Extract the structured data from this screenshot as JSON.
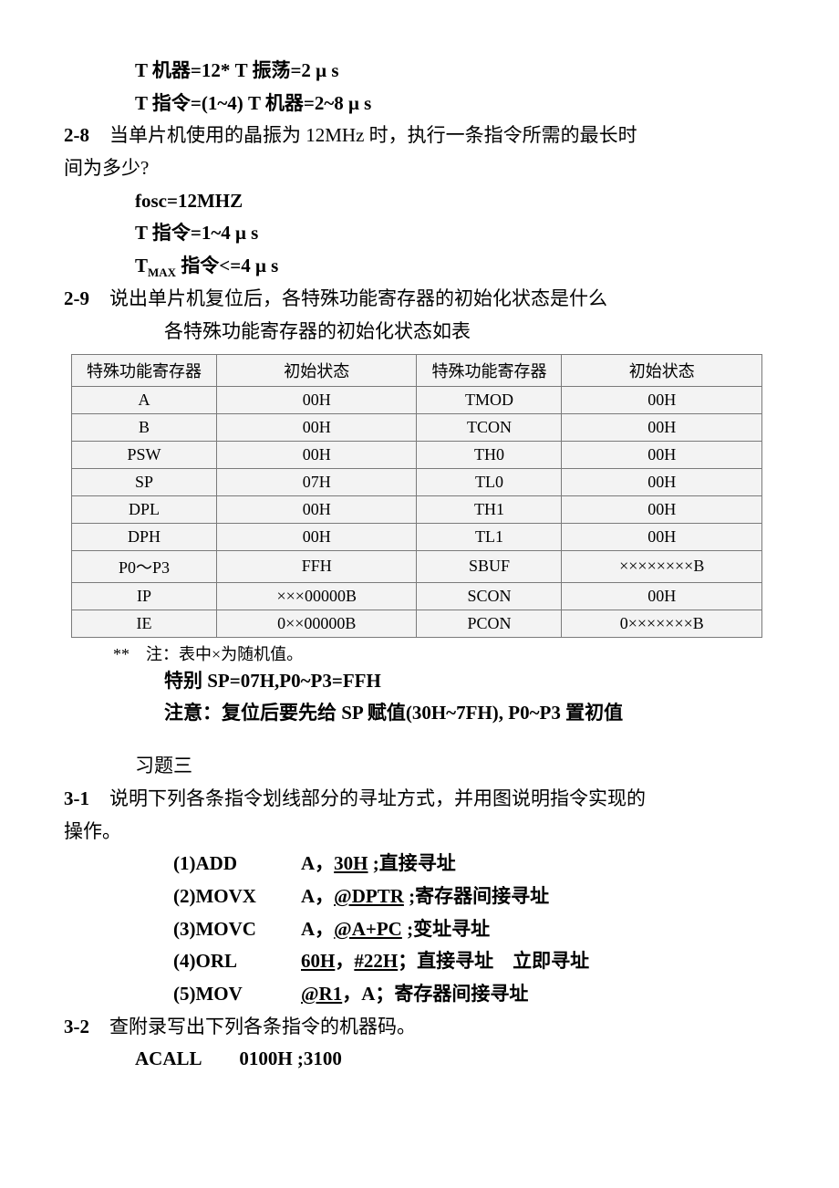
{
  "top": {
    "l1": "T 机器=12* T 振荡=2 μ s",
    "l2": "T 指令=(1~4) T 机器=2~8 μ s"
  },
  "q28": {
    "num": "2-8",
    "text1": "当单片机使用的晶振为 12MHz 时，执行一条指令所需的最长时",
    "text2": "间为多少?",
    "a1": "fosc=12MHZ",
    "a2": "T 指令=1~4 μ s",
    "a3_pre": "T",
    "a3_sub": "MAX",
    "a3_post": " 指令<=4 μ s"
  },
  "q29": {
    "num": "2-9",
    "text1": "说出单片机复位后，各特殊功能寄存器的初始化状态是什么",
    "text2": "各特殊功能寄存器的初始化状态如表"
  },
  "table": {
    "headers": [
      "特殊功能寄存器",
      "初始状态",
      "特殊功能寄存器",
      "初始状态"
    ],
    "rows": [
      [
        "A",
        "00H",
        "TMOD",
        "00H"
      ],
      [
        "B",
        "00H",
        "TCON",
        "00H"
      ],
      [
        "PSW",
        "00H",
        "TH0",
        "00H"
      ],
      [
        "SP",
        "07H",
        "TL0",
        "00H"
      ],
      [
        "DPL",
        "00H",
        "TH1",
        "00H"
      ],
      [
        "DPH",
        "00H",
        "TL1",
        "00H"
      ],
      [
        "P0～P3",
        "FFH",
        "SBUF",
        "××××××××B"
      ],
      [
        "IP",
        "×××00000B",
        "SCON",
        "00H"
      ],
      [
        "IE",
        "0××00000B",
        "PCON",
        "0×××××××B"
      ]
    ],
    "note": "**　注：表中×为随机值。",
    "extra1": "特别 SP=07H,P0~P3=FFH",
    "extra2": "注意：复位后要先给 SP 赋值(30H~7FH), P0~P3 置初值"
  },
  "ch3": {
    "title": "习题三",
    "q31_num": "3-1",
    "q31_t1": "说明下列各条指令划线部分的寻址方式，并用图说明指令实现的",
    "q31_t2": "操作。",
    "items": [
      {
        "pre": "(1)ADD",
        "mid": "A，",
        "u": "30H",
        "post": " ;直接寻址"
      },
      {
        "pre": "(2)MOVX",
        "mid": "A，",
        "u": "@DPTR",
        "post": " ;寄存器间接寻址"
      },
      {
        "pre": "(3)MOVC",
        "mid": "A，",
        "u": "@A+PC",
        "post": " ;变址寻址"
      },
      {
        "pre": "(4)ORL ",
        "mid": "",
        "u": "60H",
        "post": "，",
        "u2": "#22H",
        "post2": "；直接寻址　立即寻址"
      },
      {
        "pre": "(5)MOV ",
        "mid": "",
        "u": "@R1",
        "post": "，A；寄存器间接寻址"
      }
    ],
    "q32_num": "3-2",
    "q32_t": "查附录写出下列各条指令的机器码。",
    "q32_a": "ACALL　　0100H ;3100"
  },
  "style": {
    "bg": "#ffffff",
    "fg": "#000000",
    "border": "#7a7a7a",
    "cell_bg": "#f3f3f3",
    "font_body_pt": 21,
    "font_table_pt": 18,
    "font_note_pt": 18,
    "col_widths_pct": [
      21,
      29,
      21,
      29
    ]
  }
}
